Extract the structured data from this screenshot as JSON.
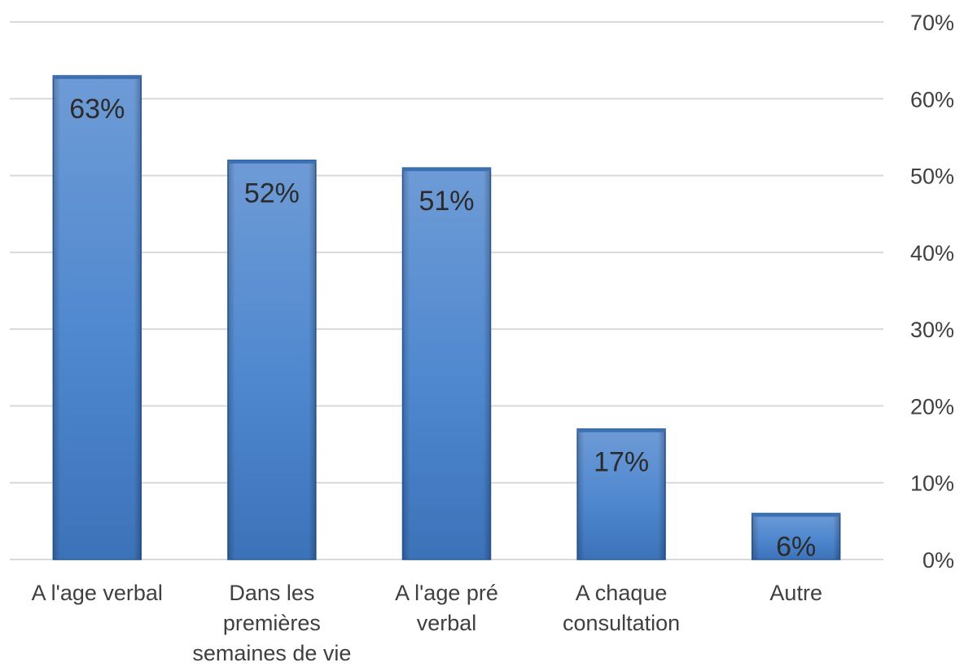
{
  "chart_data": {
    "type": "bar",
    "title": "",
    "xlabel": "",
    "ylabel": "",
    "categories": [
      [
        "A l'age verbal"
      ],
      [
        "Dans les",
        "premières",
        "semaines de vie"
      ],
      [
        "A l'age pré",
        "verbal"
      ],
      [
        "A chaque",
        "consultation"
      ],
      [
        "Autre"
      ]
    ],
    "values": [
      63,
      52,
      51,
      17,
      6
    ],
    "value_labels": [
      "63%",
      "52%",
      "51%",
      "17%",
      "6%"
    ],
    "ylim": [
      0,
      70
    ],
    "yticks": [
      0,
      10,
      20,
      30,
      40,
      50,
      60,
      70
    ],
    "ytick_labels": [
      "0%",
      "10%",
      "20%",
      "30%",
      "40%",
      "50%",
      "60%",
      "70%"
    ],
    "y_axis_side": "right",
    "grid": true,
    "legend": "none",
    "colors": {
      "bar_light": "#6b9bd6",
      "bar_mid": "#4a87cf",
      "bar_dark": "#3a6fb3",
      "bar_edge": "#2f5f9e",
      "grid": "#d9d9d9",
      "text": "#404040"
    }
  }
}
